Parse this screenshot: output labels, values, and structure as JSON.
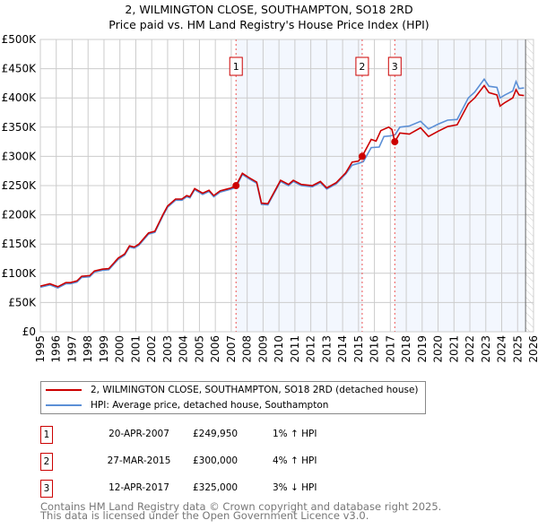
{
  "chart_data": {
    "type": "line",
    "title": "2, WILMINGTON CLOSE, SOUTHAMPTON, SO18 2RD",
    "subtitle": "Price paid vs. HM Land Registry's House Price Index (HPI)",
    "xlim": [
      1995,
      2026
    ],
    "ylim": [
      0,
      500000
    ],
    "x_ticks": [
      "1995",
      "1996",
      "1997",
      "1998",
      "1999",
      "2000",
      "2001",
      "2002",
      "2003",
      "2004",
      "2005",
      "2006",
      "2007",
      "2008",
      "2009",
      "2010",
      "2011",
      "2012",
      "2013",
      "2014",
      "2015",
      "2016",
      "2017",
      "2018",
      "2019",
      "2020",
      "2021",
      "2022",
      "2023",
      "2024",
      "2025",
      "2026"
    ],
    "y_ticks": [
      {
        "v": 0,
        "label": "£0"
      },
      {
        "v": 50000,
        "label": "£50K"
      },
      {
        "v": 100000,
        "label": "£100K"
      },
      {
        "v": 150000,
        "label": "£150K"
      },
      {
        "v": 200000,
        "label": "£200K"
      },
      {
        "v": 250000,
        "label": "£250K"
      },
      {
        "v": 300000,
        "label": "£300K"
      },
      {
        "v": 350000,
        "label": "£350K"
      },
      {
        "v": 400000,
        "label": "£400K"
      },
      {
        "v": 450000,
        "label": "£450K"
      },
      {
        "v": 500000,
        "label": "£500K"
      }
    ],
    "grid": true,
    "forecast_from": 2025.5,
    "series": [
      {
        "name": "2, WILMINGTON CLOSE, SOUTHAMPTON, SO18 2RD (detached house)",
        "color": "#cc0000",
        "x": [
          1995.0,
          1995.6,
          1996.1,
          1996.6,
          1996.9,
          1997.3,
          1997.6,
          1998.1,
          1998.4,
          1998.9,
          1999.3,
          1999.9,
          2000.3,
          2000.6,
          2000.9,
          2001.2,
          2001.8,
          2002.2,
          2002.7,
          2003.0,
          2003.5,
          2003.9,
          2004.2,
          2004.4,
          2004.7,
          2005.2,
          2005.6,
          2005.9,
          2006.3,
          2007.0,
          2007.3,
          2007.7,
          2008.1,
          2008.6,
          2008.9,
          2009.3,
          2010.1,
          2010.6,
          2010.9,
          2011.4,
          2012.1,
          2012.6,
          2013.0,
          2013.6,
          2014.2,
          2014.6,
          2015.0,
          2015.23,
          2015.8,
          2016.1,
          2016.4,
          2016.9,
          2017.1,
          2017.28,
          2017.6,
          2018.2,
          2018.9,
          2019.4,
          2020.0,
          2020.6,
          2021.2,
          2021.9,
          2022.3,
          2022.9,
          2023.2,
          2023.7,
          2023.9,
          2024.2,
          2024.7,
          2024.9,
          2025.1,
          2025.4
        ],
        "y": [
          78000,
          82000,
          77000,
          84000,
          84000,
          87000,
          95000,
          96000,
          104000,
          107000,
          108000,
          126000,
          133000,
          147000,
          145000,
          150000,
          169000,
          172000,
          200000,
          215000,
          227000,
          227000,
          233000,
          231000,
          245000,
          237000,
          242000,
          233000,
          241000,
          246000,
          249950,
          271000,
          264000,
          256000,
          220000,
          219000,
          259000,
          252000,
          259000,
          252000,
          250000,
          257000,
          246000,
          255000,
          272000,
          290000,
          292000,
          300000,
          329000,
          326000,
          344000,
          350000,
          346000,
          325000,
          340000,
          338000,
          349000,
          334000,
          343000,
          351000,
          354000,
          390000,
          400000,
          421000,
          409000,
          405000,
          386000,
          392000,
          400000,
          414000,
          405000,
          404000
        ]
      },
      {
        "name": "HPI: Average price, detached house, Southampton",
        "color": "#5b8fd6",
        "x": [
          1995.0,
          1995.6,
          1996.1,
          1996.6,
          1996.9,
          1997.3,
          1997.6,
          1998.1,
          1998.4,
          1998.9,
          1999.3,
          1999.9,
          2000.3,
          2000.6,
          2000.9,
          2001.2,
          2001.8,
          2002.2,
          2002.7,
          2003.0,
          2003.5,
          2003.9,
          2004.2,
          2004.4,
          2004.7,
          2005.2,
          2005.6,
          2005.9,
          2006.3,
          2007.0,
          2007.3,
          2007.7,
          2008.1,
          2008.6,
          2008.9,
          2009.3,
          2010.1,
          2010.6,
          2010.9,
          2011.4,
          2012.1,
          2012.6,
          2013.0,
          2013.6,
          2014.2,
          2014.6,
          2015.0,
          2015.3,
          2015.8,
          2016.3,
          2016.6,
          2017.0,
          2017.3,
          2017.6,
          2018.2,
          2018.9,
          2019.4,
          2020.0,
          2020.6,
          2021.2,
          2021.9,
          2022.3,
          2022.9,
          2023.2,
          2023.7,
          2023.9,
          2024.2,
          2024.7,
          2024.9,
          2025.1,
          2025.4
        ],
        "y": [
          76000,
          80000,
          75000,
          82000,
          82000,
          85000,
          93000,
          94000,
          102000,
          105000,
          106000,
          124000,
          131000,
          145000,
          143000,
          148000,
          167000,
          170000,
          198000,
          213000,
          225000,
          225000,
          231000,
          229000,
          243000,
          235000,
          240000,
          231000,
          239000,
          244000,
          247000,
          269000,
          262000,
          254000,
          218000,
          217000,
          257000,
          250000,
          257000,
          250000,
          248000,
          255000,
          244000,
          253000,
          270000,
          285000,
          288000,
          291000,
          315000,
          316000,
          334000,
          335000,
          337000,
          350000,
          352000,
          360000,
          347000,
          355000,
          362000,
          363000,
          400000,
          410000,
          432000,
          420000,
          418000,
          400000,
          405000,
          412000,
          428000,
          416000,
          417000
        ]
      }
    ],
    "sales": [
      {
        "id": "1",
        "x": 2007.3,
        "price": 249950,
        "date": "20-APR-2007",
        "price_label": "£249,950",
        "hpi": "1% ↑ HPI"
      },
      {
        "id": "2",
        "x": 2015.23,
        "price": 300000,
        "date": "27-MAR-2015",
        "price_label": "£300,000",
        "hpi": "4% ↑ HPI"
      },
      {
        "id": "3",
        "x": 2017.28,
        "price": 325000,
        "date": "12-APR-2017",
        "price_label": "£325,000",
        "hpi": "3% ↓ HPI"
      }
    ]
  },
  "footer": {
    "line1": "Contains HM Land Registry data © Crown copyright and database right 2025.",
    "line2": "This data is licensed under the Open Government Licence v3.0."
  }
}
